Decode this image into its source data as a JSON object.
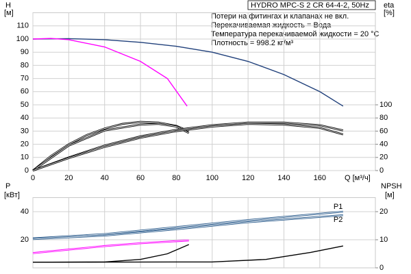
{
  "chart_data": [
    {
      "type": "line",
      "title": "HYDRO MPC-S 2 CR 64-4-2, 50Hz",
      "notes": [
        "Потери на фитингах и клапанах не вкл.",
        "Перекачиваемая жидкость = Вода",
        "Температура перекачиваемой жидкости = 20 °C",
        "Плотность = 998.2 кг/м³"
      ],
      "ylabel": "H",
      "yunit": "[м]",
      "y2label": "eta",
      "y2unit": "[%]",
      "xlabel": "Q [м³/ч]",
      "xlim": [
        0,
        191
      ],
      "xticks": [
        0,
        20,
        40,
        60,
        80,
        100,
        120,
        140,
        160
      ],
      "ylim": [
        0,
        120
      ],
      "yticks": [
        0,
        10,
        20,
        30,
        40,
        50,
        60,
        70,
        80,
        90,
        100,
        110
      ],
      "y2lim": [
        0,
        240
      ],
      "y2ticks": [
        0,
        20,
        40,
        60,
        80,
        100
      ],
      "grid": true,
      "series": [
        {
          "color": "#1f3f7a",
          "style": "single",
          "x": [
            0,
            20,
            40,
            60,
            80,
            100,
            120,
            140,
            160,
            173
          ],
          "values": [
            100,
            100.3,
            99.5,
            97.5,
            94.5,
            90,
            83,
            73,
            60,
            49
          ]
        },
        {
          "color": "#ff00ff",
          "style": "single",
          "x": [
            0,
            10,
            20,
            40,
            60,
            75,
            86
          ],
          "values": [
            100,
            100.5,
            99.5,
            94,
            83,
            70,
            49
          ]
        },
        {
          "color": "#000000",
          "style": "double",
          "axis": "y2",
          "x": [
            0,
            10,
            20,
            30,
            40,
            50,
            60,
            70,
            80,
            87
          ],
          "values": [
            0,
            22,
            40,
            54,
            64,
            71,
            74,
            73,
            68,
            60
          ]
        },
        {
          "color": "#000000",
          "style": "double",
          "axis": "y2",
          "x": [
            0,
            20,
            40,
            60,
            70,
            80,
            87
          ],
          "values": [
            0,
            38,
            61,
            70,
            71,
            67,
            57
          ]
        },
        {
          "color": "#000000",
          "style": "double",
          "axis": "y2",
          "x": [
            0,
            20,
            40,
            60,
            80,
            100,
            120,
            140,
            160,
            173
          ],
          "values": [
            0,
            20,
            38,
            52,
            62,
            69,
            73,
            73,
            69,
            61
          ]
        },
        {
          "color": "#000000",
          "style": "double",
          "axis": "y2",
          "x": [
            0,
            20,
            40,
            60,
            80,
            100,
            120,
            140,
            160,
            173
          ],
          "values": [
            0,
            19,
            36,
            50,
            60,
            67,
            71,
            70,
            65,
            55
          ]
        }
      ]
    },
    {
      "type": "line",
      "ylabel": "P",
      "yunit": "[кВт]",
      "y2label": "NPSH",
      "y2unit": "[м]",
      "xlim": [
        0,
        191
      ],
      "xticks": [
        0,
        20,
        40,
        60,
        80,
        100,
        120,
        140,
        160
      ],
      "ylim": [
        0,
        50
      ],
      "yticks": [
        20,
        40
      ],
      "y2lim": [
        0,
        25
      ],
      "y2ticks": [
        0,
        10,
        20
      ],
      "grid": true,
      "series": [
        {
          "name": "P1",
          "color": "#2a5b8c",
          "style": "double",
          "x": [
            0,
            40,
            80,
            120,
            173
          ],
          "values": [
            21,
            24,
            29,
            34,
            40
          ]
        },
        {
          "name": "P2",
          "color": "#2a5b8c",
          "style": "double",
          "x": [
            0,
            40,
            80,
            120,
            173
          ],
          "values": [
            20.5,
            23,
            27.5,
            32.5,
            37.5
          ]
        },
        {
          "color": "#ff00ff",
          "style": "double",
          "x": [
            0,
            20,
            40,
            60,
            87
          ],
          "values": [
            10.5,
            13,
            15.5,
            17.5,
            19.5
          ]
        },
        {
          "color": "#000000",
          "style": "single",
          "axis": "y2",
          "x": [
            0,
            40,
            60,
            75,
            87
          ],
          "values": [
            2,
            2.1,
            3,
            5,
            8.3
          ]
        },
        {
          "color": "#000000",
          "style": "single",
          "axis": "y2",
          "x": [
            0,
            100,
            130,
            155,
            173
          ],
          "values": [
            2,
            2.1,
            3,
            5.5,
            7.8
          ]
        }
      ]
    }
  ]
}
